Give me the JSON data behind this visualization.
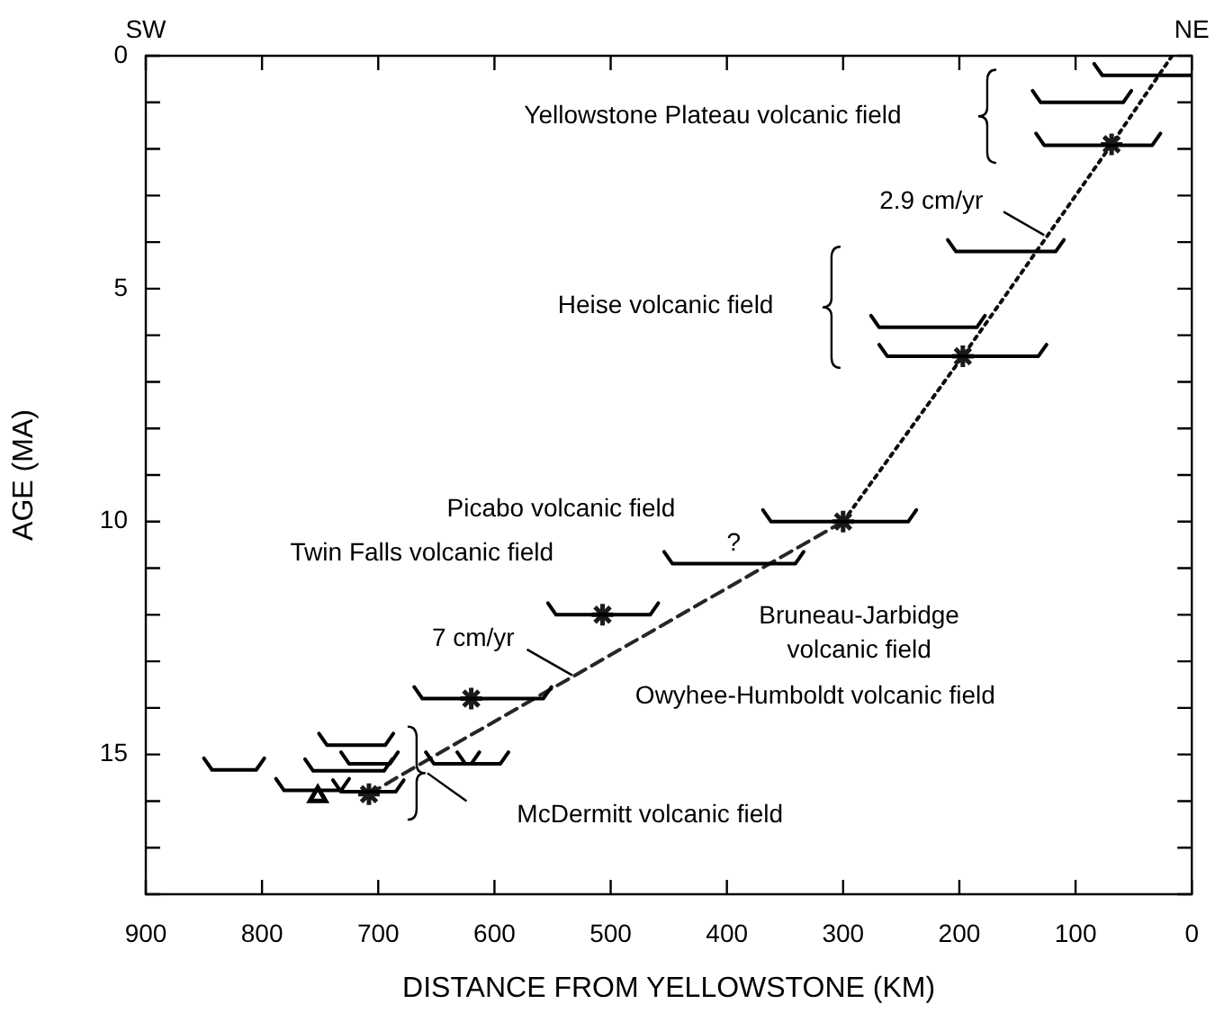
{
  "chart_data": {
    "type": "scatter",
    "xlabel": "DISTANCE FROM YELLOWSTONE (KM)",
    "ylabel": "AGE (MA)",
    "xlim": [
      900,
      0
    ],
    "xticks": [
      900,
      800,
      700,
      600,
      500,
      400,
      300,
      200,
      100,
      0
    ],
    "ylim": [
      18,
      0
    ],
    "yticks": [
      0,
      {
        "value": 1,
        "label": null
      },
      {
        "value": 2,
        "label": null
      },
      {
        "value": 3,
        "label": null
      },
      {
        "value": 4,
        "label": null
      },
      5,
      {
        "value": 6,
        "label": null
      },
      {
        "value": 7,
        "label": null
      },
      {
        "value": 8,
        "label": null
      },
      {
        "value": 9,
        "label": null
      },
      10,
      {
        "value": 11,
        "label": null
      },
      {
        "value": 12,
        "label": null
      },
      {
        "value": 13,
        "label": null
      },
      {
        "value": 14,
        "label": null
      },
      15,
      {
        "value": 16,
        "label": null
      },
      {
        "value": 17,
        "label": null
      },
      {
        "value": 18,
        "label": null
      }
    ],
    "grid": false,
    "legend": false,
    "series": [
      {
        "type": "line",
        "marker": "none",
        "color": "#000000",
        "x": [
          84,
          77,
          0
        ],
        "values": [
          0.17,
          0.42,
          0.42
        ]
      },
      {
        "type": "line",
        "marker": "none",
        "color": "#000000",
        "x": [
          137,
          130,
          59,
          52
        ],
        "values": [
          0.75,
          1.0,
          1.0,
          0.75
        ]
      },
      {
        "type": "line",
        "marker": "none",
        "color": "#000000",
        "x": [
          134,
          127,
          34,
          27
        ],
        "values": [
          1.67,
          1.92,
          1.92,
          1.67
        ]
      },
      {
        "type": "line",
        "marker": "none",
        "color": "#000000",
        "x": [
          210,
          203,
          117,
          110
        ],
        "values": [
          3.95,
          4.2,
          4.2,
          3.95
        ]
      },
      {
        "type": "line",
        "marker": "none",
        "color": "#000000",
        "x": [
          276,
          269,
          185,
          178
        ],
        "values": [
          5.58,
          5.83,
          5.83,
          5.58
        ]
      },
      {
        "type": "line",
        "marker": "none",
        "color": "#000000",
        "x": [
          269,
          262,
          132,
          125
        ],
        "values": [
          6.2,
          6.45,
          6.45,
          6.2
        ]
      },
      {
        "type": "line",
        "marker": "none",
        "color": "#000000",
        "x": [
          369,
          362,
          244,
          237
        ],
        "values": [
          9.75,
          10.0,
          10.0,
          9.75
        ]
      },
      {
        "type": "line",
        "marker": "none",
        "color": "#000000",
        "x": [
          454,
          447,
          341,
          334
        ],
        "values": [
          10.65,
          10.9,
          10.9,
          10.65
        ]
      },
      {
        "type": "line",
        "marker": "none",
        "color": "#000000",
        "x": [
          554,
          547,
          466,
          459
        ],
        "values": [
          11.75,
          12.0,
          12.0,
          11.75
        ]
      },
      {
        "type": "line",
        "marker": "none",
        "color": "#000000",
        "x": [
          669,
          662,
          558,
          551
        ],
        "values": [
          13.55,
          13.8,
          13.8,
          13.55
        ]
      },
      {
        "type": "line",
        "marker": "none",
        "color": "#000000",
        "x": [
          751,
          744,
          694,
          687
        ],
        "values": [
          14.55,
          14.8,
          14.8,
          14.55
        ]
      },
      {
        "type": "line",
        "marker": "none",
        "color": "#000000",
        "x": [
          850,
          843,
          805,
          798
        ],
        "values": [
          15.08,
          15.33,
          15.33,
          15.08
        ]
      },
      {
        "type": "line",
        "marker": "none",
        "color": "#000000",
        "x": [
          763,
          756,
          695,
          688
        ],
        "values": [
          15.1,
          15.35,
          15.35,
          15.1
        ]
      },
      {
        "type": "line",
        "marker": "none",
        "color": "#000000",
        "x": [
          732,
          725,
          690,
          683
        ],
        "values": [
          14.95,
          15.2,
          15.2,
          14.95
        ]
      },
      {
        "type": "line",
        "marker": "none",
        "color": "#000000",
        "x": [
          788,
          781,
          732,
          725
        ],
        "values": [
          15.52,
          15.77,
          15.77,
          15.52
        ]
      },
      {
        "type": "line",
        "marker": "none",
        "color": "#000000",
        "x": [
          739,
          732,
          685,
          678
        ],
        "values": [
          15.55,
          15.8,
          15.8,
          15.55
        ]
      },
      {
        "type": "line",
        "marker": "none",
        "color": "#000000",
        "x": [
          659,
          652,
          620,
          613
        ],
        "values": [
          14.95,
          15.2,
          15.2,
          14.95
        ]
      },
      {
        "type": "line",
        "marker": "none",
        "color": "#000000",
        "x": [
          632,
          625,
          595,
          588
        ],
        "values": [
          14.95,
          15.2,
          15.2,
          14.95
        ]
      },
      {
        "marker": "cross",
        "color": "#1a1a1a",
        "x": [
          69,
          197,
          300,
          507,
          620,
          708
        ],
        "values": [
          1.9,
          6.45,
          10.0,
          12.0,
          13.8,
          15.85
        ]
      },
      {
        "marker": "triangle",
        "color": "#000000",
        "x": [
          752
        ],
        "values": [
          15.9
        ]
      },
      {
        "type": "line",
        "marker": "none",
        "line_style": "dotted",
        "color": "#0d0d0d",
        "x": [
          17,
          69,
          197,
          300
        ],
        "values": [
          0,
          1.9,
          6.45,
          10.0
        ]
      },
      {
        "type": "line",
        "marker": "none",
        "line_style": "dashed",
        "color": "#262626",
        "x": [
          300,
          667,
          708
        ],
        "values": [
          10.0,
          15.25,
          15.85
        ]
      }
    ],
    "annotations": [
      "SW",
      "Yellowstone Plateau volcanic field",
      {
        "text": "2.9 cm/yr",
        "x": 127,
        "y": 3.85
      },
      "Heise volcanic field",
      "Picabo volcanic field",
      "Twin Falls volcanic field",
      "?",
      "Bruneau-Jarbidge\nvolcanic field",
      {
        "text": "7 cm/yr",
        "x": 533,
        "y": 13.3
      },
      "Owyhee-Humboldt volcanic field",
      "McDermitt volcanic field",
      "NE"
    ]
  }
}
